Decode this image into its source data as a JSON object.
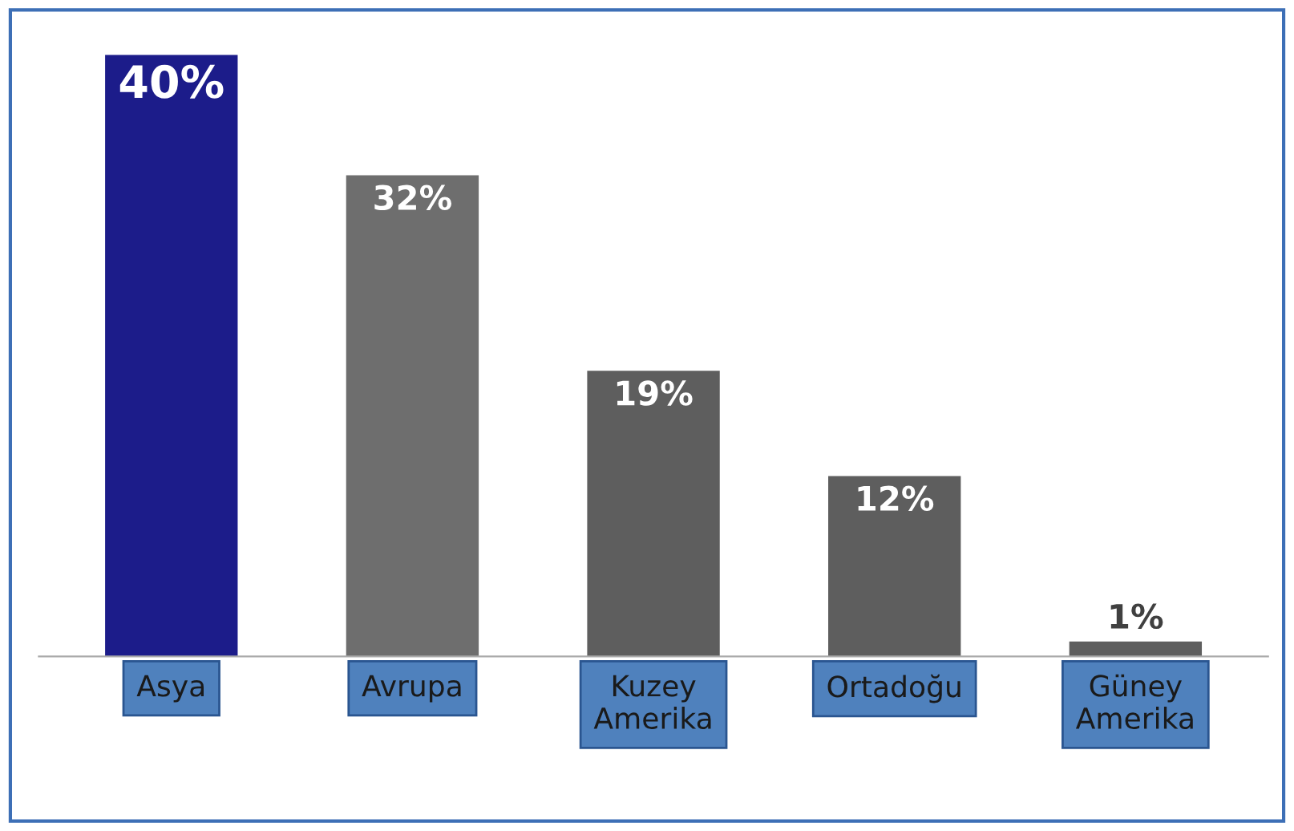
{
  "chart_data": {
    "type": "bar",
    "categories": [
      "Asya",
      "Avrupa",
      "Kuzey\nAmerika",
      "Ortadoğu",
      "Güney\nAmerika"
    ],
    "values": [
      40,
      32,
      19,
      12,
      1
    ],
    "colors": [
      "#1c1c8a",
      "#6e6e6e",
      "#5e5e5e",
      "#5e5e5e",
      "#5e5e5e"
    ],
    "value_labels": [
      "40%",
      "32%",
      "19%",
      "12%",
      "1%"
    ],
    "grid": false,
    "legend": false
  }
}
